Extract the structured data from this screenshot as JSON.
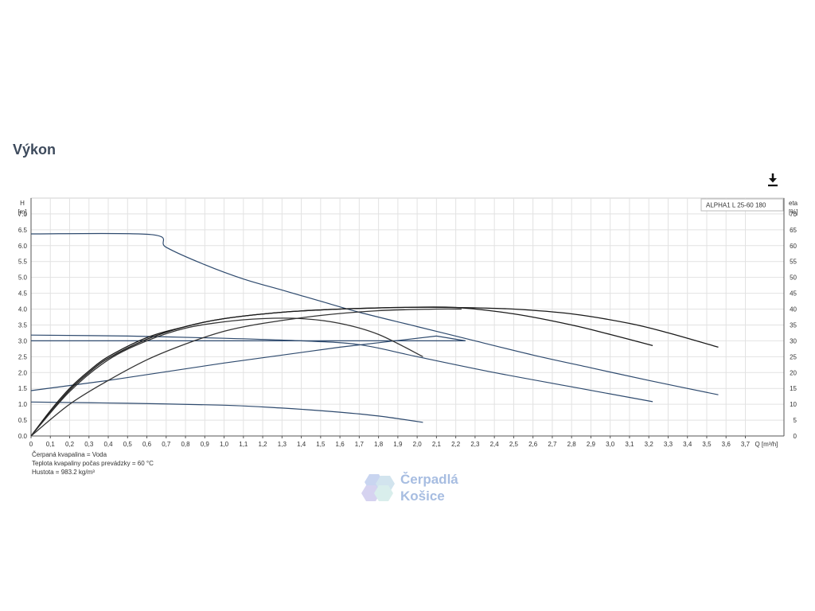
{
  "page": {
    "title": "Výkon",
    "download_icon": "download-icon"
  },
  "chart_data": {
    "type": "line",
    "legend": "ALPHA1 L 25-60  180",
    "left_axis": {
      "label": "H",
      "unit": "[m]",
      "range": [
        0,
        7.5
      ],
      "ticks": [
        "0.0",
        "0.5",
        "1.0",
        "1.5",
        "2.0",
        "2.5",
        "3.0",
        "3.5",
        "4.0",
        "4.5",
        "5.0",
        "5.5",
        "6.0",
        "6.5",
        "7.0"
      ]
    },
    "right_axis": {
      "label": "eta",
      "unit": "[%]",
      "range": [
        0,
        75
      ],
      "ticks": [
        "0",
        "5",
        "10",
        "15",
        "20",
        "25",
        "30",
        "35",
        "40",
        "45",
        "50",
        "55",
        "60",
        "65",
        "70"
      ]
    },
    "x_axis": {
      "label": "Q [m³/h]",
      "range": [
        0,
        3.9
      ],
      "ticks": [
        "0",
        "0,1",
        "0,2",
        "0,3",
        "0,4",
        "0,5",
        "0,6",
        "0,7",
        "0,8",
        "0,9",
        "1,0",
        "1,1",
        "1,2",
        "1,3",
        "1,4",
        "1,5",
        "1,6",
        "1,7",
        "1,8",
        "1,9",
        "2,0",
        "2,1",
        "2,2",
        "2,3",
        "2,4",
        "2,5",
        "2,6",
        "2,7",
        "2,8",
        "2,9",
        "3,0",
        "3,1",
        "3,2",
        "3,3",
        "3,4",
        "3,5",
        "3,6",
        "3,7"
      ]
    },
    "grid": true,
    "series": [
      {
        "kind": "H",
        "color": "#2e4a6e",
        "x": [
          0,
          0.62,
          0.7,
          0.9,
          1.1,
          1.3,
          1.5,
          1.7,
          2.0,
          2.3,
          2.6,
          2.9,
          3.2,
          3.56
        ],
        "y": [
          6.37,
          6.35,
          5.95,
          5.4,
          4.95,
          4.6,
          4.25,
          3.9,
          3.45,
          3.0,
          2.55,
          2.15,
          1.75,
          1.3
        ]
      },
      {
        "kind": "H",
        "color": "#2e4a6e",
        "x": [
          0,
          0.5,
          1.0,
          1.4,
          1.7,
          2.0,
          2.4,
          2.8,
          3.22
        ],
        "y": [
          3.18,
          3.15,
          3.08,
          3.0,
          2.88,
          2.5,
          2.0,
          1.55,
          1.08
        ]
      },
      {
        "kind": "H",
        "color": "#2e4a6e",
        "x": [
          0,
          0.5,
          1.0,
          1.3,
          1.6,
          1.8,
          2.03
        ],
        "y": [
          1.07,
          1.03,
          0.97,
          0.88,
          0.75,
          0.63,
          0.43
        ]
      },
      {
        "kind": "H",
        "color": "#2e4a6e",
        "x": [
          0,
          1.0,
          2.25
        ],
        "y": [
          3.0,
          3.0,
          3.0
        ]
      },
      {
        "kind": "H",
        "color": "#2e4a6e",
        "x": [
          0,
          0.4,
          1.0,
          1.6,
          2.1,
          2.25
        ],
        "y": [
          1.43,
          1.75,
          2.3,
          2.8,
          3.15,
          3.0
        ]
      },
      {
        "kind": "eta",
        "color": "#1a1a1a",
        "x": [
          0,
          0.1,
          0.2,
          0.3,
          0.4,
          0.6,
          0.8,
          1.0,
          1.3,
          1.6,
          1.9,
          2.2,
          2.5,
          2.8,
          3.1,
          3.3,
          3.56
        ],
        "y": [
          0,
          8,
          15,
          20.5,
          25,
          31,
          34.5,
          37,
          39,
          40,
          40.5,
          40.5,
          40,
          38.5,
          35.5,
          32.5,
          28
        ]
      },
      {
        "kind": "eta",
        "color": "#1a1a1a",
        "x": [
          0,
          0.1,
          0.2,
          0.3,
          0.4,
          0.6,
          0.8,
          1.0,
          1.3,
          1.6,
          1.9,
          2.2,
          2.5,
          2.8,
          3.0,
          3.22
        ],
        "y": [
          0,
          7.5,
          14.5,
          20,
          24.5,
          30.5,
          34.5,
          37,
          39,
          40,
          40.5,
          40.5,
          38.5,
          35,
          32,
          28.5
        ]
      },
      {
        "kind": "eta",
        "color": "#333333",
        "x": [
          0,
          0.2,
          0.4,
          0.6,
          0.8,
          1.0,
          1.2,
          1.4,
          1.6,
          1.8,
          2.03
        ],
        "y": [
          0,
          14,
          24,
          30,
          34,
          36,
          37,
          37,
          35.5,
          32,
          25
        ]
      },
      {
        "kind": "eta",
        "color": "#333333",
        "x": [
          0,
          0.2,
          0.4,
          0.6,
          0.8,
          1.0,
          1.2,
          1.5,
          1.8,
          2.1,
          2.23
        ],
        "y": [
          0,
          10,
          17.5,
          24,
          29,
          33,
          35.5,
          38,
          39.5,
          40,
          40
        ]
      }
    ],
    "notes": [
      "Čerpaná kvapalina = Voda",
      "Teplota kvapaliny počas prevádzky = 60 °C",
      "Hustota = 983.2 kg/m³"
    ]
  },
  "watermark": {
    "line1": "Čerpadlá",
    "line2": "Košice"
  }
}
